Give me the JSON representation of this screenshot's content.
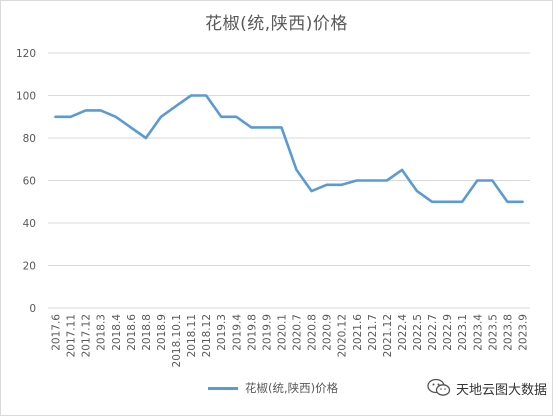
{
  "chart_data": {
    "type": "line",
    "title": "花椒(统,陕西)价格",
    "xlabel": "",
    "ylabel": "",
    "ylim": [
      0,
      120
    ],
    "yticks": [
      0,
      20,
      40,
      60,
      80,
      100,
      120
    ],
    "grid": "horizontal",
    "legend_position": "bottom",
    "color": "#5b9bd5",
    "categories": [
      "2017.6",
      "2017.11",
      "2017.12",
      "2018.3",
      "2018.4",
      "2018.6",
      "2018.8",
      "2018.9",
      "2018.10.1",
      "2018.11",
      "2018.12",
      "2019.3",
      "2019.4",
      "2019.8",
      "2019.9",
      "2020.1",
      "2020.7",
      "2020.8",
      "2020.9",
      "2020.12",
      "2021.6",
      "2021.7",
      "2021.12",
      "2022.4",
      "2022.5",
      "2022.7",
      "2022.9",
      "2023.1",
      "2023.4",
      "2023.5",
      "2023.8",
      "2023.9"
    ],
    "series": [
      {
        "name": "花椒(统,陕西)价格",
        "values": [
          90,
          90,
          93,
          93,
          90,
          85,
          80,
          90,
          95,
          100,
          100,
          90,
          90,
          85,
          85,
          85,
          65,
          55,
          58,
          58,
          60,
          60,
          60,
          65,
          55,
          50,
          50,
          50,
          60,
          60,
          50,
          50
        ]
      }
    ]
  },
  "watermark": {
    "text": "天地云图大数据",
    "icon": "wechat-icon"
  }
}
